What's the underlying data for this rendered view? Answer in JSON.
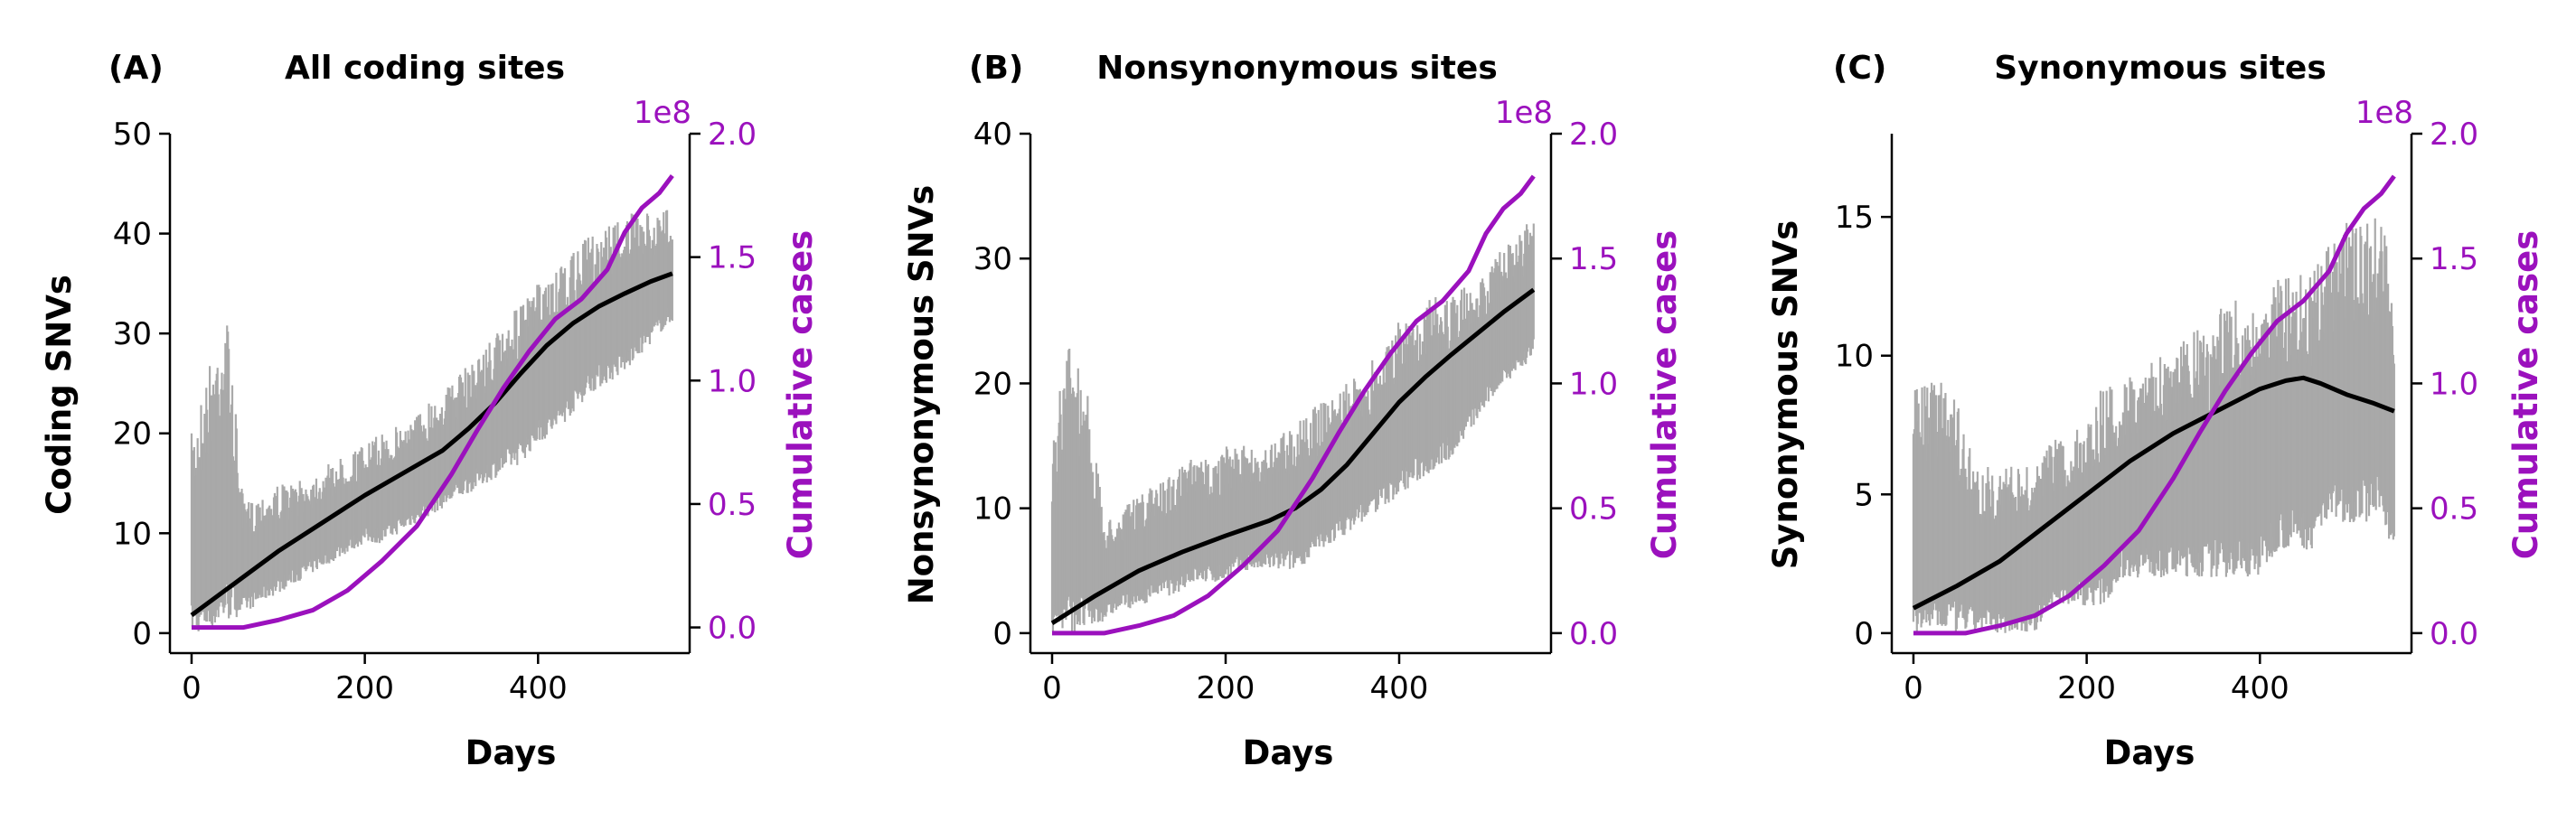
{
  "colors": {
    "range_band": "#a9a9a9",
    "snv_trend": "#000000",
    "cumulative_cases": "#9b11bd",
    "axis": "#000000",
    "background": "#ffffff"
  },
  "chart_data": [
    {
      "type": "line",
      "panel_label": "(A)",
      "title": "All coding sites",
      "xlabel": "Days",
      "ylabel": "Coding SNVs",
      "y2label": "Cumulative cases",
      "y2_multiplier": "1e8",
      "xlim": [
        -25,
        575
      ],
      "ylim": [
        -2,
        50
      ],
      "y2lim": [
        -0.104,
        2.0
      ],
      "xticks": [
        "0",
        "200",
        "400"
      ],
      "yticks": [
        "0",
        "10",
        "20",
        "30",
        "40",
        "50"
      ],
      "y2ticks": [
        "0.0",
        "0.5",
        "1.0",
        "1.5",
        "2.0"
      ],
      "grid": false,
      "series": [
        {
          "role": "daily SNV range (gray band)",
          "x": [
            0,
            20,
            40,
            60,
            80,
            100,
            120,
            140,
            160,
            180,
            200,
            220,
            240,
            260,
            280,
            300,
            320,
            340,
            360,
            380,
            400,
            420,
            440,
            460,
            480,
            500,
            520,
            540,
            555
          ],
          "low": [
            0,
            0,
            1,
            2,
            3,
            4,
            5,
            6,
            7,
            8,
            9,
            9,
            10,
            11,
            12,
            13,
            14,
            15,
            16,
            17,
            19,
            20,
            22,
            24,
            25,
            26,
            28,
            30,
            31
          ],
          "high": [
            20,
            27,
            33,
            13,
            14,
            15,
            15,
            16,
            17,
            18,
            19,
            20,
            21,
            22,
            24,
            25,
            27,
            29,
            31,
            33,
            35,
            36,
            38,
            40,
            41,
            42,
            42,
            42,
            43
          ]
        },
        {
          "role": "SNV trend (black)",
          "x": [
            0,
            50,
            100,
            150,
            200,
            250,
            290,
            320,
            350,
            380,
            410,
            440,
            470,
            500,
            530,
            555
          ],
          "y": [
            1.8,
            5.0,
            8.2,
            11.0,
            13.8,
            16.3,
            18.3,
            20.5,
            23.0,
            26.0,
            28.8,
            31.0,
            32.7,
            34.0,
            35.2,
            36.0
          ]
        },
        {
          "role": "cumulative cases (purple, right axis x1e8)",
          "x": [
            0,
            60,
            100,
            140,
            180,
            220,
            260,
            300,
            330,
            360,
            390,
            420,
            450,
            480,
            500,
            520,
            540,
            555
          ],
          "y": [
            0.0,
            0.0,
            0.03,
            0.07,
            0.15,
            0.27,
            0.41,
            0.62,
            0.8,
            0.97,
            1.12,
            1.25,
            1.33,
            1.45,
            1.6,
            1.7,
            1.76,
            1.83
          ]
        }
      ]
    },
    {
      "type": "line",
      "panel_label": "(B)",
      "title": "Nonsynonymous sites",
      "xlabel": "Days",
      "ylabel": "Nonsynonymous SNVs",
      "y2label": "Cumulative cases",
      "y2_multiplier": "1e8",
      "xlim": [
        -25,
        575
      ],
      "ylim": [
        -1.6,
        40
      ],
      "y2lim": [
        -0.08,
        2.0
      ],
      "xticks": [
        "0",
        "200",
        "400"
      ],
      "yticks": [
        "0",
        "10",
        "20",
        "30",
        "40"
      ],
      "y2ticks": [
        "0.0",
        "0.5",
        "1.0",
        "1.5",
        "2.0"
      ],
      "grid": false,
      "series": [
        {
          "role": "daily SNV range (gray band)",
          "x": [
            0,
            20,
            40,
            60,
            80,
            100,
            120,
            140,
            160,
            180,
            200,
            220,
            240,
            260,
            280,
            300,
            320,
            340,
            360,
            380,
            400,
            420,
            440,
            460,
            480,
            500,
            520,
            540,
            555
          ],
          "low": [
            0,
            0,
            0,
            1,
            2,
            2,
            3,
            3,
            4,
            4,
            4,
            5,
            5,
            5,
            5,
            6,
            7,
            8,
            9,
            10,
            11,
            12,
            13,
            14,
            16,
            18,
            20,
            21,
            22
          ],
          "high": [
            16,
            24,
            20,
            9,
            10,
            11,
            12,
            13,
            14,
            14,
            15,
            15,
            15,
            16,
            17,
            18,
            19,
            20,
            21,
            23,
            25,
            26,
            27,
            27,
            28,
            29,
            31,
            32,
            34
          ]
        },
        {
          "role": "SNV trend (black)",
          "x": [
            0,
            50,
            100,
            150,
            200,
            250,
            280,
            310,
            340,
            370,
            400,
            430,
            460,
            490,
            520,
            555
          ],
          "y": [
            0.8,
            3.0,
            5.0,
            6.5,
            7.8,
            9.0,
            10.0,
            11.5,
            13.5,
            16.0,
            18.5,
            20.5,
            22.3,
            24.0,
            25.7,
            27.5
          ]
        },
        {
          "role": "cumulative cases (purple, right axis x1e8)",
          "x": [
            0,
            60,
            100,
            140,
            180,
            220,
            260,
            300,
            330,
            360,
            390,
            420,
            450,
            480,
            500,
            520,
            540,
            555
          ],
          "y": [
            0.0,
            0.0,
            0.03,
            0.07,
            0.15,
            0.27,
            0.41,
            0.62,
            0.8,
            0.97,
            1.12,
            1.25,
            1.33,
            1.45,
            1.6,
            1.7,
            1.76,
            1.83
          ]
        }
      ]
    },
    {
      "type": "line",
      "panel_label": "(C)",
      "title": "Synonymous sites",
      "xlabel": "Days",
      "ylabel": "Synonymous SNVs",
      "y2label": "Cumulative cases",
      "y2_multiplier": "1e8",
      "xlim": [
        -25,
        575
      ],
      "ylim": [
        -0.72,
        18
      ],
      "y2lim": [
        -0.08,
        2.0
      ],
      "xticks": [
        "0",
        "200",
        "400"
      ],
      "yticks": [
        "0",
        "5",
        "10",
        "15"
      ],
      "y2ticks": [
        "0.0",
        "0.5",
        "1.0",
        "1.5",
        "2.0"
      ],
      "grid": false,
      "series": [
        {
          "role": "daily SNV range (gray band)",
          "x": [
            0,
            20,
            40,
            60,
            80,
            100,
            120,
            140,
            160,
            180,
            200,
            220,
            240,
            260,
            280,
            300,
            320,
            340,
            360,
            380,
            400,
            420,
            440,
            460,
            480,
            500,
            520,
            540,
            555
          ],
          "low": [
            0,
            0,
            0,
            0,
            0,
            0,
            0,
            0,
            1,
            1,
            1,
            1,
            2,
            2,
            2,
            2,
            2,
            2,
            2,
            2,
            2,
            3,
            3,
            3,
            4,
            4,
            4,
            4,
            3
          ],
          "high": [
            9,
            9,
            10,
            7,
            6,
            6,
            6,
            6,
            7,
            7,
            8,
            9,
            9,
            10,
            10,
            10,
            11,
            11,
            12,
            12,
            12,
            13,
            13,
            13,
            14,
            15,
            15,
            15,
            13
          ]
        },
        {
          "role": "SNV trend (black)",
          "x": [
            0,
            50,
            100,
            150,
            200,
            250,
            300,
            350,
            400,
            430,
            450,
            470,
            500,
            530,
            555
          ],
          "y": [
            0.9,
            1.7,
            2.6,
            3.8,
            5.0,
            6.2,
            7.2,
            8.0,
            8.8,
            9.1,
            9.2,
            9.0,
            8.6,
            8.3,
            8.0
          ]
        },
        {
          "role": "cumulative cases (purple, right axis x1e8)",
          "x": [
            0,
            60,
            100,
            140,
            180,
            220,
            260,
            300,
            330,
            360,
            390,
            420,
            450,
            480,
            500,
            520,
            540,
            555
          ],
          "y": [
            0.0,
            0.0,
            0.03,
            0.07,
            0.15,
            0.27,
            0.41,
            0.62,
            0.8,
            0.97,
            1.12,
            1.25,
            1.33,
            1.45,
            1.6,
            1.7,
            1.76,
            1.83
          ]
        }
      ]
    }
  ]
}
